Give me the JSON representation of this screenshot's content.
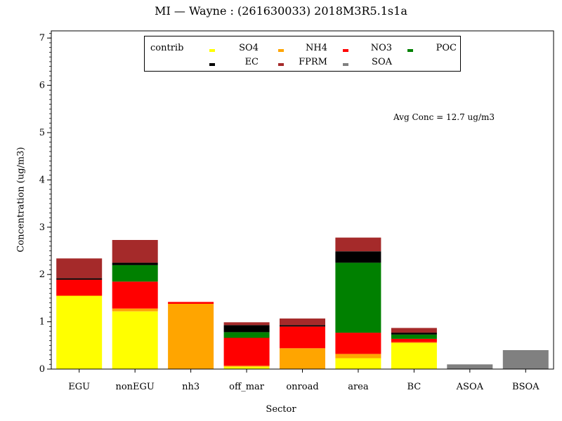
{
  "chart_data": {
    "type": "bar",
    "stacked": true,
    "title": "MI  —  Wayne  :  (261630033)  2018M3R5.1s1a",
    "xlabel": "Sector",
    "ylabel": "Concentration  (ug/m3)",
    "ylim": [
      0,
      7.1
    ],
    "yticks": [
      0,
      1,
      2,
      3,
      4,
      5,
      6,
      7
    ],
    "yminor_step": 0.1,
    "grid": false,
    "legend_position": "top-center",
    "legend_title": "contrib",
    "annotation": "Avg Conc  =  12.7 ug/m3",
    "categories": [
      "EGU",
      "nonEGU",
      "nh3",
      "off_mar",
      "onroad",
      "area",
      "BC",
      "ASOA",
      "BSOA"
    ],
    "series": [
      {
        "name": "SO4",
        "color": "#ffff00",
        "values": [
          1.55,
          1.22,
          0.0,
          0.05,
          0.0,
          0.23,
          0.55,
          0.0,
          0.0
        ]
      },
      {
        "name": "NH4",
        "color": "#ffa500",
        "values": [
          0.0,
          0.06,
          1.38,
          0.02,
          0.44,
          0.09,
          0.02,
          0.0,
          0.0
        ]
      },
      {
        "name": "NO3",
        "color": "#ff0000",
        "values": [
          0.34,
          0.57,
          0.04,
          0.59,
          0.46,
          0.45,
          0.07,
          0.0,
          0.0
        ]
      },
      {
        "name": "POC",
        "color": "#008000",
        "values": [
          0.0,
          0.35,
          0.0,
          0.12,
          0.0,
          1.48,
          0.09,
          0.0,
          0.0
        ]
      },
      {
        "name": "EC",
        "color": "#000000",
        "values": [
          0.03,
          0.05,
          0.0,
          0.15,
          0.03,
          0.24,
          0.04,
          0.0,
          0.0
        ]
      },
      {
        "name": "FPRM",
        "color": "#a52a2a",
        "values": [
          0.42,
          0.48,
          0.0,
          0.06,
          0.14,
          0.29,
          0.1,
          0.0,
          0.0
        ]
      },
      {
        "name": "SOA",
        "color": "#808080",
        "values": [
          0.0,
          0.0,
          0.0,
          0.0,
          0.0,
          0.0,
          0.0,
          0.1,
          0.4
        ]
      }
    ]
  }
}
